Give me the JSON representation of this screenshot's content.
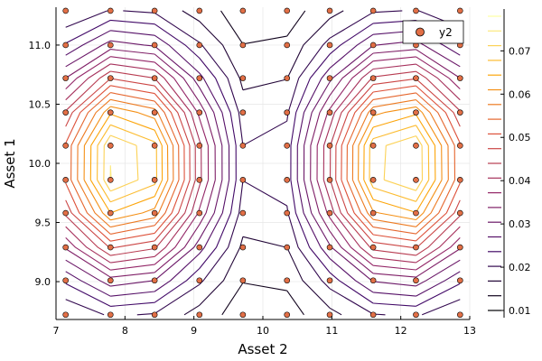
{
  "chart_data": {
    "type": "contour",
    "xlabel": "Asset 2",
    "ylabel": "Asset 1",
    "xlim": [
      7.0,
      13.0
    ],
    "ylim": [
      8.68,
      11.32
    ],
    "x_ticks": [
      7,
      8,
      9,
      10,
      11,
      12,
      13
    ],
    "y_ticks": [
      9.0,
      9.5,
      10.0,
      10.5,
      11.0
    ],
    "x_tick_labels": [
      "7",
      "8",
      "9",
      "10",
      "11",
      "12",
      "13"
    ],
    "y_tick_labels": [
      "9.0",
      "9.5",
      "10.0",
      "10.5",
      "11.0"
    ],
    "grid": true,
    "legend": {
      "position": "top-right",
      "entries": [
        "y2"
      ]
    },
    "colorbar": {
      "min": 0.01,
      "max": 0.078,
      "ticks": [
        0.01,
        0.02,
        0.03,
        0.04,
        0.05,
        0.06,
        0.07
      ],
      "tick_labels": [
        "0.01",
        "0.02",
        "0.03",
        "0.04",
        "0.05",
        "0.06",
        "0.07"
      ],
      "colormap": [
        "#000004",
        "#420a68",
        "#932667",
        "#dd513a",
        "#fca50a",
        "#fcffa4"
      ]
    },
    "contour_field": {
      "peaks": [
        [
          8.0,
          10.0
        ],
        [
          12.0,
          10.0
        ]
      ],
      "min": 0.01,
      "max": 0.078,
      "levels": 20
    },
    "scatter": {
      "name": "y2",
      "color": "#e26f46",
      "x": [
        7.14,
        7.79,
        8.43,
        9.08,
        9.71,
        10.35,
        10.97,
        11.6,
        12.22,
        12.86
      ],
      "y": [
        8.72,
        9.01,
        9.29,
        9.58,
        9.86,
        10.15,
        10.43,
        10.72,
        11.0,
        11.29
      ]
    }
  }
}
